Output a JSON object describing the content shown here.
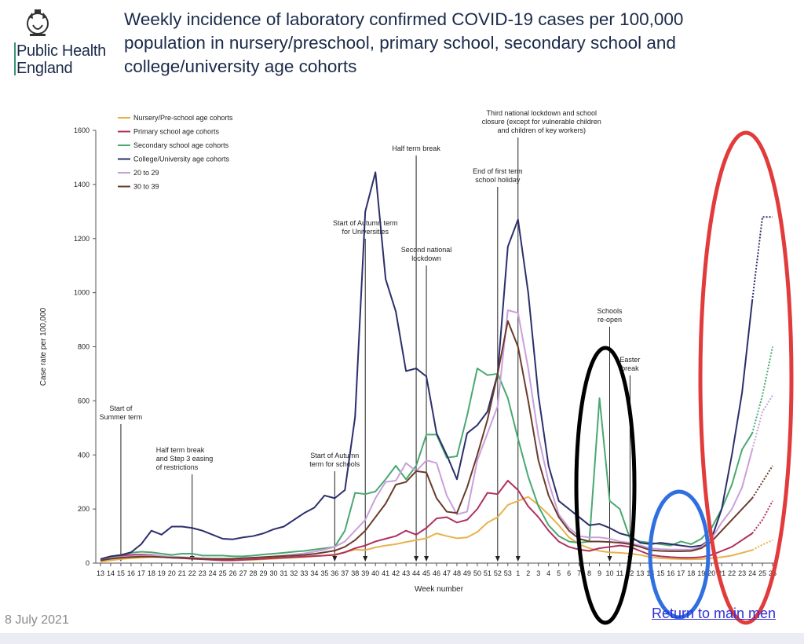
{
  "header": {
    "org_line1": "Public Health",
    "org_line2": "England",
    "title": "Weekly incidence of laboratory confirmed COVID-19 cases per 100,000 population in nursery/preschool, primary school, secondary school and college/university age cohorts"
  },
  "footer": {
    "date": "8 July 2021",
    "link": "Return to main men"
  },
  "chart_data": {
    "type": "line",
    "xlabel": "Week number",
    "ylabel": "Case rate per 100,000",
    "ylim": [
      0,
      1600
    ],
    "yticks": [
      0,
      200,
      400,
      600,
      800,
      1000,
      1200,
      1400,
      1600
    ],
    "x": [
      "13",
      "14",
      "15",
      "16",
      "17",
      "18",
      "19",
      "20",
      "21",
      "22",
      "23",
      "24",
      "25",
      "26",
      "27",
      "28",
      "29",
      "30",
      "31",
      "32",
      "33",
      "34",
      "35",
      "36",
      "37",
      "38",
      "39",
      "40",
      "41",
      "42",
      "43",
      "44",
      "45",
      "46",
      "47",
      "48",
      "49",
      "50",
      "51",
      "52",
      "53",
      "1",
      "2",
      "3",
      "4",
      "5",
      "6",
      "7",
      "8",
      "9",
      "10",
      "11",
      "12",
      "13",
      "14",
      "15",
      "16",
      "17",
      "18",
      "19",
      "20",
      "21",
      "22",
      "23",
      "24",
      "25",
      "26"
    ],
    "legend_position": "top-left",
    "grid": false,
    "series": [
      {
        "name": "Nursery/Pre-school age cohorts",
        "color": "#e8b24a",
        "values": [
          5,
          10,
          15,
          18,
          20,
          22,
          22,
          20,
          18,
          16,
          15,
          14,
          12,
          12,
          12,
          12,
          14,
          16,
          18,
          20,
          22,
          25,
          28,
          32,
          40,
          50,
          48,
          58,
          65,
          70,
          78,
          85,
          92,
          110,
          100,
          92,
          95,
          115,
          150,
          170,
          215,
          230,
          245,
          215,
          180,
          140,
          95,
          70,
          55,
          45,
          40,
          38,
          35,
          30,
          22,
          18,
          16,
          15,
          14,
          15,
          18,
          22,
          28,
          38,
          48,
          68,
          85
        ],
        "projected_from": 64
      },
      {
        "name": "Primary school age cohorts",
        "color": "#b03060",
        "values": [
          10,
          20,
          28,
          30,
          32,
          30,
          26,
          20,
          18,
          16,
          14,
          12,
          10,
          10,
          12,
          14,
          16,
          18,
          20,
          22,
          24,
          26,
          28,
          30,
          40,
          55,
          65,
          80,
          90,
          100,
          120,
          105,
          130,
          165,
          170,
          150,
          160,
          200,
          260,
          255,
          305,
          270,
          210,
          170,
          120,
          80,
          60,
          50,
          45,
          55,
          60,
          65,
          60,
          45,
          30,
          25,
          22,
          20,
          20,
          22,
          30,
          45,
          60,
          85,
          110,
          160,
          230
        ],
        "projected_from": 64
      },
      {
        "name": "Secondary school age cohorts",
        "color": "#4aa870",
        "values": [
          12,
          22,
          30,
          38,
          42,
          40,
          35,
          30,
          35,
          35,
          28,
          28,
          28,
          25,
          25,
          28,
          32,
          35,
          38,
          42,
          45,
          50,
          55,
          60,
          120,
          260,
          255,
          265,
          310,
          360,
          310,
          360,
          475,
          475,
          390,
          395,
          545,
          720,
          695,
          700,
          610,
          460,
          320,
          210,
          140,
          100,
          80,
          75,
          80,
          610,
          230,
          200,
          90,
          80,
          75,
          70,
          65,
          80,
          70,
          90,
          130,
          200,
          290,
          420,
          480,
          620,
          800
        ],
        "projected_from": 64
      },
      {
        "name": "College/University age cohorts",
        "color": "#2b2f6b",
        "values": [
          15,
          25,
          30,
          40,
          70,
          120,
          105,
          135,
          135,
          130,
          120,
          105,
          90,
          88,
          95,
          100,
          110,
          125,
          135,
          160,
          185,
          205,
          250,
          240,
          270,
          540,
          1300,
          1445,
          1050,
          930,
          710,
          720,
          690,
          480,
          400,
          310,
          480,
          510,
          560,
          700,
          1170,
          1270,
          1000,
          620,
          360,
          230,
          200,
          170,
          140,
          145,
          130,
          110,
          100,
          75,
          70,
          75,
          70,
          65,
          60,
          65,
          90,
          200,
          400,
          630,
          970,
          1280,
          1280
        ],
        "projected_from": 64
      },
      {
        "name": "20 to 29",
        "color": "#c9a0dc",
        "values": [
          10,
          18,
          22,
          25,
          28,
          28,
          26,
          24,
          22,
          20,
          18,
          16,
          16,
          16,
          18,
          20,
          22,
          25,
          28,
          32,
          36,
          42,
          50,
          60,
          80,
          120,
          160,
          240,
          300,
          305,
          370,
          340,
          380,
          370,
          250,
          180,
          190,
          380,
          480,
          580,
          935,
          925,
          720,
          470,
          300,
          180,
          130,
          100,
          95,
          95,
          90,
          80,
          75,
          65,
          55,
          52,
          50,
          50,
          50,
          60,
          90,
          150,
          200,
          280,
          420,
          560,
          620
        ],
        "projected_from": 64
      },
      {
        "name": "30 to 39",
        "color": "#6b3a2a",
        "values": [
          10,
          16,
          20,
          22,
          24,
          24,
          22,
          20,
          20,
          18,
          16,
          16,
          16,
          16,
          18,
          20,
          22,
          24,
          26,
          28,
          30,
          34,
          40,
          46,
          60,
          85,
          120,
          170,
          220,
          290,
          300,
          340,
          335,
          240,
          190,
          185,
          280,
          400,
          530,
          700,
          895,
          800,
          600,
          380,
          250,
          170,
          120,
          90,
          80,
          80,
          78,
          75,
          70,
          60,
          48,
          45,
          44,
          44,
          45,
          55,
          80,
          120,
          160,
          200,
          240,
          300,
          360
        ],
        "projected_from": 64
      }
    ],
    "annotations": [
      {
        "at_week": "36",
        "lines": [
          "Start of Autumn",
          "term for schools"
        ]
      },
      {
        "at_week": "39",
        "lines": [
          "Start of Autumn term",
          "for Universities"
        ]
      },
      {
        "at_week": "44",
        "lines": [
          "Half term break"
        ]
      },
      {
        "at_week": "45",
        "lines": [
          "Second national",
          "lockdown"
        ]
      },
      {
        "at_week": "52",
        "lines": [
          "End of first term",
          "school holiday"
        ]
      },
      {
        "at_week": "1",
        "lines": [
          "Third national lockdown and school",
          "closure (except for vulnerable children",
          "and children of key workers)"
        ]
      },
      {
        "at_week": "10",
        "lines": [
          "Schools",
          "re-open"
        ]
      },
      {
        "at_week": "12",
        "lines": [
          "Easter",
          "break"
        ]
      },
      {
        "at_week": "15",
        "lines": [
          "Start of",
          "Summer term"
        ]
      },
      {
        "at_week": "22",
        "lines": [
          "Half term break",
          "and Step 3 easing",
          "of restrictions"
        ]
      }
    ],
    "highlight_ellipses": [
      {
        "color": "#000000",
        "around": "Schools re-open, weeks 9–12"
      },
      {
        "color": "#2f6fe0",
        "around": "weeks 16–19"
      },
      {
        "color": "#e23b3b",
        "around": "weeks 20–26"
      }
    ]
  }
}
